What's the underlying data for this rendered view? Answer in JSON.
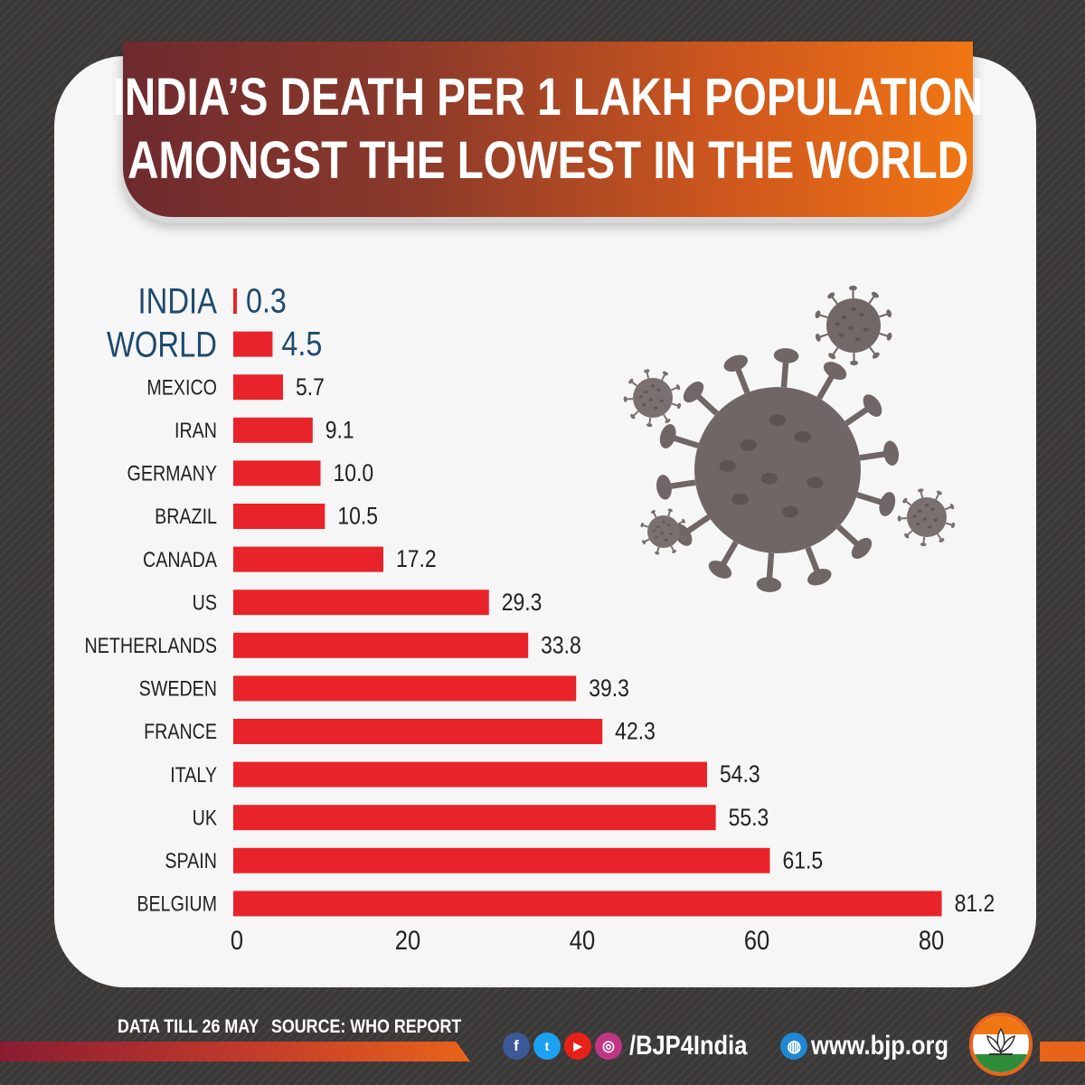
{
  "header": {
    "title_line1": "INDIA’S DEATH PER 1 LAKH POPULATION",
    "title_line2": "AMONGST THE LOWEST IN THE WORLD"
  },
  "chart_data": {
    "type": "bar",
    "orientation": "horizontal",
    "categories": [
      "INDIA",
      "WORLD",
      "MEXICO",
      "IRAN",
      "GERMANY",
      "BRAZIL",
      "CANADA",
      "US",
      "NETHERLANDS",
      "SWEDEN",
      "FRANCE",
      "ITALY",
      "UK",
      "SPAIN",
      "BELGIUM"
    ],
    "values": [
      0.3,
      4.5,
      5.7,
      9.1,
      10.0,
      10.5,
      17.2,
      29.3,
      33.8,
      39.3,
      42.3,
      54.3,
      55.3,
      61.5,
      81.2
    ],
    "value_labels": [
      "0.3",
      "4.5",
      "5.7",
      "9.1",
      "10.0",
      "10.5",
      "17.2",
      "29.3",
      "33.8",
      "39.3",
      "42.3",
      "54.3",
      "55.3",
      "61.5",
      "81.2"
    ],
    "highlighted_categories": [
      "INDIA",
      "WORLD"
    ],
    "x_ticks": [
      "0",
      "20",
      "40",
      "60",
      "80"
    ],
    "x_tick_values": [
      0,
      20,
      40,
      60,
      80
    ],
    "grid": false,
    "bar_color": "#e8242a",
    "highlight_color": "#1e4a6e"
  },
  "footer": {
    "data_note": "DATA TILL 26 MAY",
    "source": "SOURCE: WHO REPORT",
    "handle": "/BJP4India",
    "website": "www.bjp.org"
  },
  "icons": {
    "facebook": "facebook-icon",
    "twitter": "twitter-icon",
    "youtube": "youtube-icon",
    "instagram": "instagram-icon",
    "globe": "globe-icon",
    "virus": "virus-illustration",
    "logo": "lotus-logo"
  },
  "colors": {
    "accent_orange": "#f07613",
    "accent_maroon": "#6e2a2f",
    "bar_red": "#e8242a",
    "navy_text": "#1e4a6e"
  }
}
